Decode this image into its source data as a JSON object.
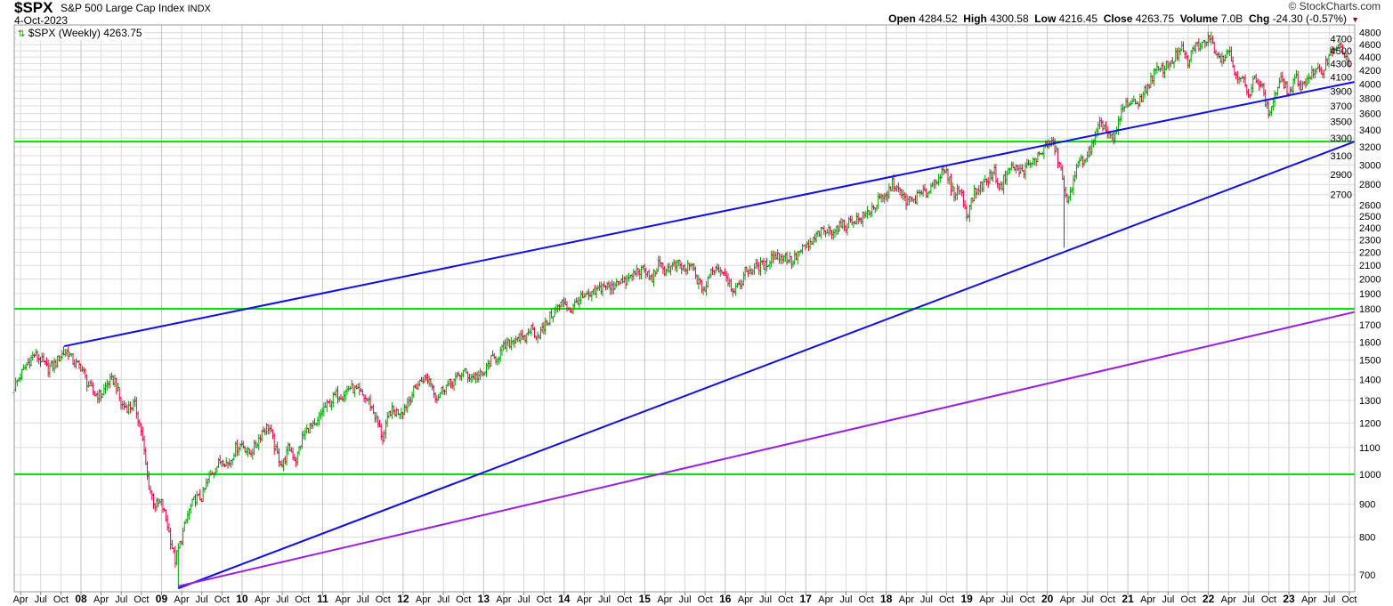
{
  "header": {
    "symbol": "$SPX",
    "name": "S&P 500 Large Cap Index",
    "exchange": "INDX",
    "date": "4-Oct-2023",
    "copyright": "© StockCharts.com",
    "open_label": "Open",
    "open": "4284.52",
    "high_label": "High",
    "high": "4300.58",
    "low_label": "Low",
    "low": "4216.45",
    "close_label": "Close",
    "close": "4263.75",
    "volume_label": "Volume",
    "volume": "7.0B",
    "chg_label": "Chg",
    "chg": "-24.30 (-0.57%)",
    "chg_icon": "triangle-down-icon"
  },
  "legend": {
    "icon": "ohlc-bar-icon",
    "text": "$SPX (Weekly) 4263.75"
  },
  "colors": {
    "up": "#00a000",
    "down": "#e0004a",
    "trend_blue": "#1010e0",
    "trend_purple": "#9a20e0",
    "support_green": "#00e000",
    "grid": "#dcdcdc"
  },
  "chart_data": {
    "type": "ohlc",
    "title": "$SPX (Weekly)",
    "y_scale": "log",
    "ylim": [
      640,
      4900
    ],
    "xlim": [
      "2007-03",
      "2023-10"
    ],
    "grid": true,
    "y_ticks": [
      700,
      800,
      900,
      1000,
      1100,
      1200,
      1300,
      1400,
      1500,
      1600,
      1700,
      1800,
      1900,
      2000,
      2100,
      2200,
      2300,
      2400,
      2500,
      2600,
      2700,
      2800,
      2900,
      3000,
      3100,
      3200,
      3300,
      3400,
      3500,
      3600,
      3700,
      3800,
      3900,
      4000,
      4100,
      4200,
      4300,
      4400,
      4500,
      4600,
      4700,
      4800
    ],
    "x_ticks": [
      "Apr",
      "Jul",
      "Oct",
      "08",
      "Apr",
      "Jul",
      "Oct",
      "09",
      "Apr",
      "Jul",
      "Oct",
      "10",
      "Apr",
      "Jul",
      "Oct",
      "11",
      "Apr",
      "Jul",
      "Oct",
      "12",
      "Apr",
      "Jul",
      "Oct",
      "13",
      "Apr",
      "Jul",
      "Oct",
      "14",
      "Apr",
      "Jul",
      "Oct",
      "15",
      "Apr",
      "Jul",
      "Oct",
      "16",
      "Apr",
      "Jul",
      "Oct",
      "17",
      "Apr",
      "Jul",
      "Oct",
      "18",
      "Apr",
      "Jul",
      "Oct",
      "19",
      "Apr",
      "Jul",
      "Oct",
      "20",
      "Apr",
      "Jul",
      "Oct",
      "21",
      "Apr",
      "Jul",
      "Oct",
      "22",
      "Apr",
      "Jul",
      "Oct",
      "23",
      "Apr",
      "Jul",
      "Oct"
    ],
    "monthly_closes": {
      "2007": [
        null,
        null,
        1421,
        1482,
        1530,
        1503,
        1455,
        1474,
        1527,
        1549,
        1481,
        1468
      ],
      "2008": [
        1378,
        1331,
        1323,
        1386,
        1400,
        1280,
        1267,
        1283,
        1166,
        969,
        896,
        903
      ],
      "2009": [
        826,
        735,
        798,
        873,
        919,
        919,
        987,
        1021,
        1057,
        1036,
        1096,
        1115
      ],
      "2010": [
        1074,
        1104,
        1169,
        1187,
        1089,
        1031,
        1102,
        1049,
        1141,
        1183,
        1181,
        1258
      ],
      "2011": [
        1286,
        1327,
        1326,
        1364,
        1345,
        1321,
        1292,
        1219,
        1131,
        1253,
        1247,
        1258
      ],
      "2012": [
        1312,
        1366,
        1408,
        1398,
        1310,
        1362,
        1379,
        1407,
        1441,
        1412,
        1416,
        1426
      ],
      "2013": [
        1498,
        1515,
        1569,
        1598,
        1631,
        1606,
        1686,
        1633,
        1682,
        1757,
        1806,
        1848
      ],
      "2014": [
        1783,
        1859,
        1872,
        1884,
        1924,
        1960,
        1931,
        2003,
        1972,
        2018,
        2068,
        2059
      ],
      "2015": [
        1995,
        2105,
        2068,
        2086,
        2107,
        2063,
        2104,
        1972,
        1920,
        2079,
        2080,
        2044
      ],
      "2016": [
        1940,
        1932,
        2060,
        2065,
        2097,
        2099,
        2174,
        2171,
        2168,
        2126,
        2199,
        2239
      ],
      "2017": [
        2279,
        2364,
        2363,
        2384,
        2412,
        2423,
        2470,
        2472,
        2519,
        2575,
        2648,
        2674
      ],
      "2018": [
        2824,
        2714,
        2641,
        2648,
        2705,
        2718,
        2816,
        2902,
        2914,
        2712,
        2760,
        2507
      ],
      "2019": [
        2704,
        2784,
        2834,
        2946,
        2752,
        2942,
        2980,
        2926,
        2977,
        3038,
        3141,
        3231
      ],
      "2020": [
        3226,
        2954,
        2585,
        2912,
        3044,
        3100,
        3271,
        3500,
        3363,
        3270,
        3622,
        3756
      ],
      "2021": [
        3714,
        3811,
        3973,
        4181,
        4204,
        4298,
        4395,
        4523,
        4308,
        4605,
        4567,
        4766
      ],
      "2022": [
        4516,
        4374,
        4530,
        4132,
        4132,
        3785,
        4130,
        3955,
        3586,
        3872,
        4080,
        3840
      ],
      "2023": [
        4077,
        3970,
        4109,
        4169,
        4180,
        4450,
        4589,
        4508,
        4288,
        4264,
        null,
        null
      ]
    },
    "notable_extremes": [
      {
        "date": "2007-10",
        "value": 1576
      },
      {
        "date": "2009-03",
        "value": 667
      },
      {
        "date": "2020-03",
        "value": 2237
      },
      {
        "date": "2022-01",
        "value": 4818
      }
    ],
    "trendlines": [
      {
        "color": "trend_blue",
        "from": {
          "date": "2007-10",
          "value": 1576
        },
        "to": {
          "date": "2023-10",
          "value": 4030
        }
      },
      {
        "color": "trend_blue",
        "from": {
          "date": "2009-03",
          "value": 667
        },
        "to": {
          "date": "2023-10",
          "value": 3260
        }
      },
      {
        "color": "trend_purple",
        "from": {
          "date": "2009-03",
          "value": 672
        },
        "to": {
          "date": "2023-10",
          "value": 1780
        }
      }
    ],
    "horizontal_lines": [
      {
        "color": "support_green",
        "value": 3260
      },
      {
        "color": "support_green",
        "value": 1800
      },
      {
        "color": "support_green",
        "value": 1000
      }
    ]
  }
}
